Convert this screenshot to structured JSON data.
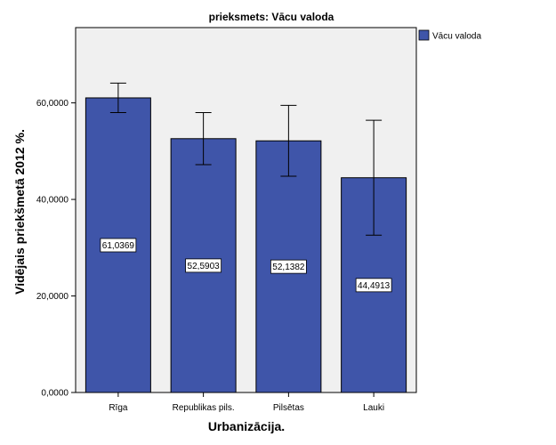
{
  "chart_data": {
    "type": "bar",
    "title": "prieksmets: Vācu valoda",
    "xlabel": "Urbanizācija.",
    "ylabel": "Vidējais priekšmetā 2012 %.",
    "categories": [
      "Rīga",
      "Republikas pils.",
      "Pilsētas",
      "Lauki"
    ],
    "series": [
      {
        "name": "Vācu valoda",
        "values": [
          61.0369,
          52.5903,
          52.1382,
          44.4913
        ],
        "value_labels": [
          "61,0369",
          "52,5903",
          "52,1382",
          "44,4913"
        ],
        "error_low": [
          58.0,
          47.2,
          44.8,
          32.6
        ],
        "error_high": [
          64.1,
          58.0,
          59.5,
          56.4
        ]
      }
    ],
    "ylim": [
      0,
      75.6
    ],
    "yticks": [
      0,
      20,
      40,
      60
    ],
    "ytick_labels": [
      "0,0000",
      "20,0000",
      "40,0000",
      "60,0000"
    ],
    "legend_position": "top-right",
    "grid": false,
    "colors": {
      "bar": "#3f55a9",
      "plot_background": "#f0f0f0"
    }
  }
}
